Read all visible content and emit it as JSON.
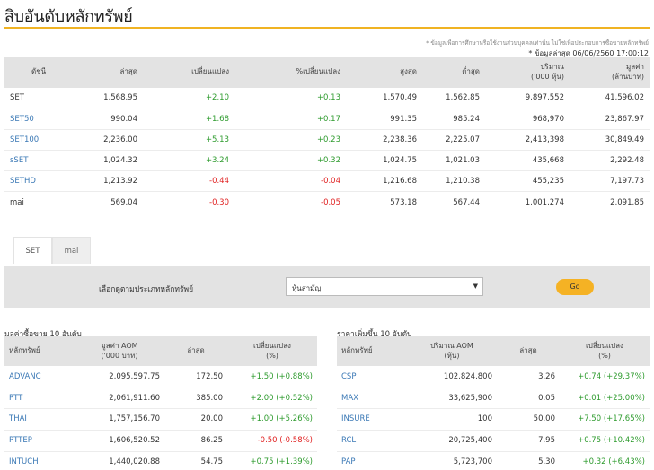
{
  "page": {
    "title": "สิบอันดับหลักทรัพย์",
    "note": "* ข้อมูลเพื่อการศึกษาหรือใช้งานส่วนบุคคลเท่านั้น ไม่ใช่เพื่อประกอบการซื้อขายหลักทรัพย์",
    "asof": "* ข้อมูลล่าสุด 06/06/2560 17:00:12"
  },
  "indices": {
    "headers": [
      "ดัชนี",
      "ล่าสุด",
      "เปลี่ยนแปลง",
      "%เปลี่ยนแปลง",
      "สูงสุด",
      "ต่ำสุด",
      "ปริมาณ\n('000 หุ้น)",
      "มูลค่า\n(ล้านบาท)"
    ],
    "rows": [
      {
        "name": "SET",
        "link": false,
        "last": "1,568.95",
        "chg": "+2.10",
        "pct": "+0.13",
        "high": "1,570.49",
        "low": "1,562.85",
        "vol": "9,897,552",
        "val": "41,596.02",
        "dir": "up"
      },
      {
        "name": "SET50",
        "link": true,
        "last": "990.04",
        "chg": "+1.68",
        "pct": "+0.17",
        "high": "991.35",
        "low": "985.24",
        "vol": "968,970",
        "val": "23,867.97",
        "dir": "up"
      },
      {
        "name": "SET100",
        "link": true,
        "last": "2,236.00",
        "chg": "+5.13",
        "pct": "+0.23",
        "high": "2,238.36",
        "low": "2,225.07",
        "vol": "2,413,398",
        "val": "30,849.49",
        "dir": "up"
      },
      {
        "name": "sSET",
        "link": true,
        "last": "1,024.32",
        "chg": "+3.24",
        "pct": "+0.32",
        "high": "1,024.75",
        "low": "1,021.03",
        "vol": "435,668",
        "val": "2,292.48",
        "dir": "up"
      },
      {
        "name": "SETHD",
        "link": true,
        "last": "1,213.92",
        "chg": "-0.44",
        "pct": "-0.04",
        "high": "1,216.68",
        "low": "1,210.38",
        "vol": "455,235",
        "val": "7,197.73",
        "dir": "down"
      },
      {
        "name": "mai",
        "link": false,
        "last": "569.04",
        "chg": "-0.30",
        "pct": "-0.05",
        "high": "573.18",
        "low": "567.44",
        "vol": "1,001,274",
        "val": "2,091.85",
        "dir": "down"
      }
    ]
  },
  "tabs": {
    "set": "SET",
    "mai": "mai"
  },
  "filter": {
    "label": "เลือกดูตามประเภทหลักทรัพย์",
    "selected": "หุ้นสามัญ",
    "go": "Go"
  },
  "top_value": {
    "title": "มูลค่าซื้อขาย 10 อันดับ",
    "headers": [
      "หลักทรัพย์",
      "มูลค่า AOM\n('000 บาท)",
      "ล่าสุด",
      "เปลี่ยนแปลง\n(%)"
    ],
    "rows": [
      {
        "sym": "ADVANC",
        "a": "2,095,597.75",
        "last": "172.50",
        "chg": "+1.50 (+0.88%)",
        "dir": "up"
      },
      {
        "sym": "PTT",
        "a": "2,061,911.60",
        "last": "385.00",
        "chg": "+2.00 (+0.52%)",
        "dir": "up"
      },
      {
        "sym": "THAI",
        "a": "1,757,156.70",
        "last": "20.00",
        "chg": "+1.00 (+5.26%)",
        "dir": "up"
      },
      {
        "sym": "PTTEP",
        "a": "1,606,520.52",
        "last": "86.25",
        "chg": "-0.50 (-0.58%)",
        "dir": "down"
      },
      {
        "sym": "INTUCH",
        "a": "1,440,020.88",
        "last": "54.75",
        "chg": "+0.75 (+1.39%)",
        "dir": "up"
      }
    ]
  },
  "top_gainers": {
    "title": "ราคาเพิ่มขึ้น 10 อันดับ",
    "headers": [
      "หลักทรัพย์",
      "ปริมาณ AOM\n(หุ้น)",
      "ล่าสุด",
      "เปลี่ยนแปลง\n(%)"
    ],
    "rows": [
      {
        "sym": "CSP",
        "a": "102,824,800",
        "last": "3.26",
        "chg": "+0.74 (+29.37%)",
        "dir": "up"
      },
      {
        "sym": "MAX",
        "a": "33,625,900",
        "last": "0.05",
        "chg": "+0.01 (+25.00%)",
        "dir": "up"
      },
      {
        "sym": "INSURE",
        "a": "100",
        "last": "50.00",
        "chg": "+7.50 (+17.65%)",
        "dir": "up"
      },
      {
        "sym": "RCL",
        "a": "20,725,400",
        "last": "7.95",
        "chg": "+0.75 (+10.42%)",
        "dir": "up"
      },
      {
        "sym": "PAP",
        "a": "5,723,700",
        "last": "5.30",
        "chg": "+0.32 (+6.43%)",
        "dir": "up"
      }
    ]
  },
  "colors": {
    "accent": "#f0b323",
    "up": "#2e9b2e",
    "down": "#e02020",
    "link": "#3a78b5",
    "header_bg": "#e3e3e3"
  }
}
